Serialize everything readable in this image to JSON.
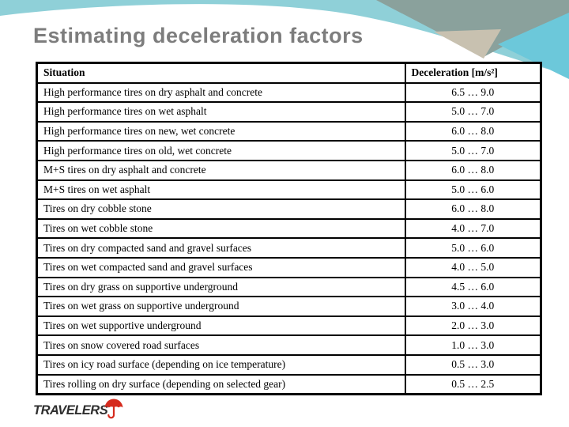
{
  "slide": {
    "title": "Estimating deceleration factors"
  },
  "table": {
    "headers": {
      "situation": "Situation",
      "deceleration": "Deceleration [m/s²]"
    },
    "rows": [
      {
        "situation": "High performance tires on dry asphalt and concrete",
        "deceleration": "6.5 … 9.0"
      },
      {
        "situation": "High performance tires on wet asphalt",
        "deceleration": "5.0 … 7.0"
      },
      {
        "situation": "High performance tires on new, wet concrete",
        "deceleration": "6.0 … 8.0"
      },
      {
        "situation": "High performance tires on old, wet concrete",
        "deceleration": "5.0 … 7.0"
      },
      {
        "situation": "M+S tires on dry asphalt and concrete",
        "deceleration": "6.0 … 8.0"
      },
      {
        "situation": "M+S tires on wet asphalt",
        "deceleration": "5.0 … 6.0"
      },
      {
        "situation": "Tires on dry cobble stone",
        "deceleration": "6.0 … 8.0"
      },
      {
        "situation": "Tires on wet cobble stone",
        "deceleration": "4.0 … 7.0"
      },
      {
        "situation": "Tires on dry compacted sand and gravel surfaces",
        "deceleration": "5.0 … 6.0"
      },
      {
        "situation": "Tires on wet compacted sand and gravel surfaces",
        "deceleration": "4.0 … 5.0"
      },
      {
        "situation": "Tires on dry grass on supportive underground",
        "deceleration": "4.5 … 6.0"
      },
      {
        "situation": "Tires on wet grass on supportive underground",
        "deceleration": "3.0 … 4.0"
      },
      {
        "situation": "Tires on wet supportive underground",
        "deceleration": "2.0 … 3.0"
      },
      {
        "situation": "Tires on snow covered road surfaces",
        "deceleration": "1.0 … 3.0"
      },
      {
        "situation": "Tires on icy road surface (depending on ice temperature)",
        "deceleration": "0.5 … 3.0"
      },
      {
        "situation": "Tires rolling on dry surface (depending on selected gear)",
        "deceleration": "0.5 … 2.5"
      }
    ]
  },
  "logo": {
    "text": "TRAVELERS"
  },
  "colors": {
    "band_cyan": "#8fd0d8",
    "triangle_cyan": "#6cc8da",
    "triangle_sage": "#8aa19c",
    "triangle_tan": "#c8c1b0",
    "title_gray": "#7d7d7d",
    "table_border": "#000000",
    "umbrella_red": "#d52b1e",
    "logo_text": "#2e2e2e"
  }
}
